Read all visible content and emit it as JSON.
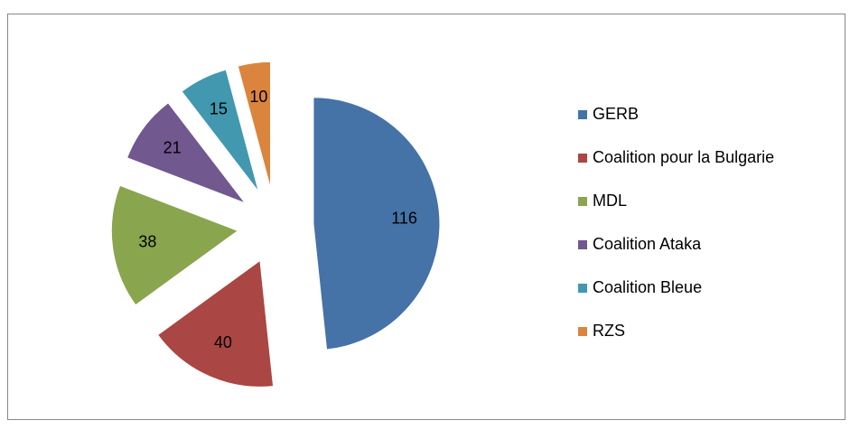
{
  "chart_data": {
    "type": "pie",
    "categories": [
      "GERB",
      "Coalition pour la Bulgarie",
      "MDL",
      "Coalition Ataka",
      "Coalition Bleue",
      "RZS"
    ],
    "values": [
      116,
      40,
      38,
      21,
      15,
      10
    ],
    "colors": [
      "#4572A7",
      "#AA4643",
      "#89A54E",
      "#71588F",
      "#4198AF",
      "#DB843D"
    ],
    "exploded": true,
    "legend": "right"
  }
}
